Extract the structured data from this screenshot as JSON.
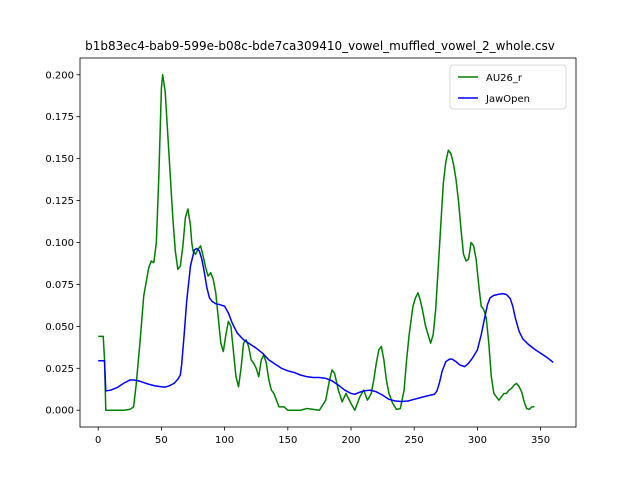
{
  "chart_data": {
    "type": "line",
    "title": "b1b83ec4-bab9-599e-b08c-bde7ca309410_vowel_muffled_vowel_2_whole.csv",
    "xlabel": "",
    "ylabel": "",
    "xlim": [
      -14.4,
      378
    ],
    "ylim": [
      -0.01,
      0.21
    ],
    "xticks": [
      0,
      50,
      100,
      150,
      200,
      250,
      300,
      350
    ],
    "yticks": [
      0.0,
      0.025,
      0.05,
      0.075,
      0.1,
      0.125,
      0.15,
      0.175,
      0.2
    ],
    "ytick_labels": [
      "0.000",
      "0.025",
      "0.050",
      "0.075",
      "0.100",
      "0.125",
      "0.150",
      "0.175",
      "0.200"
    ],
    "grid": false,
    "legend": {
      "position": "top-right"
    },
    "series": [
      {
        "name": "AU26_r",
        "color": "#008000",
        "x": [
          0,
          4,
          5,
          6,
          10,
          15,
          20,
          25,
          28,
          30,
          33,
          36,
          40,
          42,
          44,
          46,
          48,
          50,
          51,
          53,
          55,
          57,
          59,
          61,
          63,
          65,
          67,
          69,
          71,
          73,
          74,
          75,
          77,
          79,
          81,
          83,
          85,
          87,
          89,
          91,
          93,
          95,
          97,
          99,
          101,
          103,
          105,
          107,
          109,
          111,
          113,
          115,
          117,
          119,
          121,
          123,
          125,
          127,
          129,
          131,
          133,
          135,
          137,
          139,
          141,
          143,
          145,
          147,
          150,
          153,
          156,
          160,
          165,
          170,
          175,
          180,
          183,
          185,
          187,
          190,
          193,
          196,
          200,
          203,
          207,
          210,
          213,
          216,
          218,
          220,
          222,
          224,
          226,
          228,
          230,
          233,
          236,
          239,
          242,
          244,
          246,
          249,
          251,
          253,
          255,
          257,
          259,
          261,
          263,
          265,
          267,
          269,
          271,
          273,
          275,
          277,
          279,
          281,
          283,
          285,
          287,
          289,
          291,
          293,
          295,
          297,
          299,
          301,
          303,
          305,
          307,
          309,
          311,
          313,
          315,
          317,
          319,
          321,
          323,
          325,
          327,
          329,
          331,
          333,
          335,
          337,
          339,
          341,
          343,
          345
        ],
        "values": [
          0.044,
          0.044,
          0.03,
          0.0,
          0.0,
          0.0,
          0.0,
          0.0005,
          0.002,
          0.015,
          0.04,
          0.068,
          0.085,
          0.089,
          0.088,
          0.1,
          0.14,
          0.192,
          0.2,
          0.19,
          0.165,
          0.14,
          0.115,
          0.095,
          0.084,
          0.086,
          0.098,
          0.115,
          0.12,
          0.11,
          0.1,
          0.095,
          0.093,
          0.096,
          0.098,
          0.092,
          0.085,
          0.08,
          0.082,
          0.078,
          0.07,
          0.055,
          0.04,
          0.035,
          0.045,
          0.053,
          0.05,
          0.035,
          0.02,
          0.014,
          0.025,
          0.04,
          0.042,
          0.038,
          0.03,
          0.028,
          0.025,
          0.02,
          0.03,
          0.033,
          0.028,
          0.018,
          0.012,
          0.01,
          0.006,
          0.002,
          0.002,
          0.002,
          0.0,
          0.0,
          0.0,
          0.0,
          0.001,
          0.0005,
          0.0,
          0.006,
          0.018,
          0.024,
          0.022,
          0.012,
          0.005,
          0.01,
          0.004,
          0.0,
          0.008,
          0.012,
          0.006,
          0.01,
          0.018,
          0.028,
          0.036,
          0.038,
          0.03,
          0.018,
          0.01,
          0.004,
          0.0005,
          0.001,
          0.012,
          0.03,
          0.045,
          0.062,
          0.067,
          0.07,
          0.065,
          0.058,
          0.05,
          0.045,
          0.04,
          0.045,
          0.06,
          0.085,
          0.11,
          0.135,
          0.148,
          0.155,
          0.153,
          0.147,
          0.138,
          0.125,
          0.108,
          0.093,
          0.089,
          0.09,
          0.1,
          0.098,
          0.09,
          0.075,
          0.062,
          0.06,
          0.055,
          0.04,
          0.02,
          0.01,
          0.008,
          0.006,
          0.008,
          0.01,
          0.01,
          0.012,
          0.013,
          0.015,
          0.016,
          0.014,
          0.011,
          0.005,
          0.001,
          0.0005,
          0.002,
          0.002
        ]
      },
      {
        "name": "JawOpen",
        "color": "#0000ff",
        "x": [
          0,
          3,
          5,
          6,
          10,
          15,
          20,
          25,
          28,
          32,
          36,
          40,
          45,
          50,
          53,
          56,
          60,
          63,
          65,
          66,
          68,
          70,
          73,
          76,
          78,
          80,
          82,
          84,
          86,
          88,
          90,
          93,
          96,
          100,
          103,
          106,
          110,
          115,
          120,
          125,
          130,
          135,
          140,
          145,
          150,
          155,
          160,
          165,
          170,
          175,
          180,
          185,
          190,
          195,
          200,
          203,
          206,
          210,
          215,
          220,
          225,
          230,
          235,
          240,
          245,
          250,
          255,
          260,
          263,
          266,
          268,
          270,
          272,
          275,
          278,
          280,
          283,
          286,
          290,
          293,
          296,
          300,
          303,
          306,
          308,
          310,
          313,
          316,
          320,
          323,
          326,
          328,
          330,
          333,
          336,
          340,
          345,
          350,
          355,
          360
        ],
        "values": [
          0.0295,
          0.0295,
          0.0295,
          0.0115,
          0.012,
          0.0135,
          0.016,
          0.018,
          0.018,
          0.0175,
          0.0165,
          0.0155,
          0.0145,
          0.014,
          0.0138,
          0.0145,
          0.016,
          0.0185,
          0.021,
          0.027,
          0.045,
          0.065,
          0.086,
          0.0955,
          0.0965,
          0.095,
          0.09,
          0.082,
          0.073,
          0.067,
          0.065,
          0.0635,
          0.063,
          0.062,
          0.058,
          0.052,
          0.046,
          0.042,
          0.0395,
          0.037,
          0.034,
          0.03,
          0.0275,
          0.025,
          0.0235,
          0.0225,
          0.021,
          0.02,
          0.0195,
          0.0195,
          0.019,
          0.0175,
          0.015,
          0.012,
          0.01,
          0.0095,
          0.0105,
          0.0115,
          0.012,
          0.011,
          0.009,
          0.0065,
          0.0055,
          0.0052,
          0.0055,
          0.0065,
          0.0075,
          0.0085,
          0.009,
          0.0095,
          0.0115,
          0.0165,
          0.023,
          0.029,
          0.0305,
          0.0305,
          0.029,
          0.027,
          0.026,
          0.028,
          0.031,
          0.036,
          0.045,
          0.056,
          0.063,
          0.067,
          0.0685,
          0.069,
          0.0695,
          0.069,
          0.0665,
          0.062,
          0.055,
          0.047,
          0.0425,
          0.0395,
          0.0365,
          0.034,
          0.0315,
          0.0285
        ]
      }
    ]
  }
}
